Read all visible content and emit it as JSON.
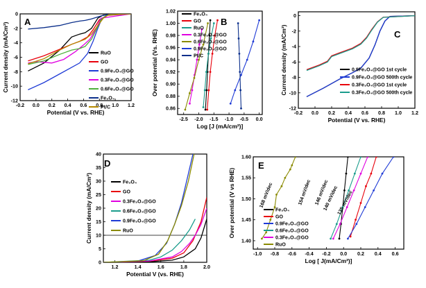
{
  "chart_data": [
    {
      "panel": "A",
      "type": "line",
      "xlabel": "Potential (V vs. RHE)",
      "ylabel": "Current density (mA/Cm²)",
      "xlim": [
        -0.2,
        1.2
      ],
      "ylim": [
        -12,
        0
      ],
      "xticks": [
        -0.2,
        0.0,
        0.2,
        0.4,
        0.6,
        0.8,
        1.0,
        1.2
      ],
      "yticks": [
        0,
        -2,
        -4,
        -6,
        -8,
        -10,
        -12
      ],
      "legend_position": "center-right",
      "series": [
        {
          "name": "RuO",
          "color": "#000000",
          "x": [
            -0.1,
            0.1,
            0.3,
            0.45,
            0.55,
            0.62,
            0.7,
            0.78,
            0.85,
            1.2
          ],
          "y": [
            -7.9,
            -6.8,
            -5.0,
            -3.2,
            -2.8,
            -2.6,
            -2.0,
            -0.6,
            -0.15,
            0.0
          ]
        },
        {
          "name": "GO",
          "color": "#e8000b",
          "x": [
            -0.1,
            0.1,
            0.3,
            0.45,
            0.55,
            0.65,
            0.72,
            0.8,
            0.9,
            1.2
          ],
          "y": [
            -6.5,
            -5.8,
            -4.9,
            -4.2,
            -3.8,
            -3.2,
            -2.2,
            -0.8,
            -0.2,
            0.0
          ]
        },
        {
          "name": "0.9Fe₃O₄@GO",
          "color": "#1f3bd6",
          "x": [
            -0.1,
            0.1,
            0.3,
            0.45,
            0.55,
            0.65,
            0.72,
            0.78,
            0.83,
            0.9,
            1.2
          ],
          "y": [
            -10.5,
            -9.5,
            -8.3,
            -7.4,
            -6.8,
            -5.5,
            -3.8,
            -2.0,
            -0.7,
            -0.1,
            0.0
          ]
        },
        {
          "name": "0.3Fe₃O₄@GO",
          "color": "#e000e0",
          "x": [
            -0.1,
            0.0,
            0.1,
            0.2,
            0.35,
            0.5,
            0.6,
            0.68,
            0.75,
            0.82,
            1.2
          ],
          "y": [
            -6.8,
            -6.6,
            -6.7,
            -6.8,
            -6.3,
            -5.2,
            -4.3,
            -3.5,
            -2.2,
            -0.6,
            0.0
          ]
        },
        {
          "name": "0.6Fe₃O₄@GO",
          "color": "#4caf3a",
          "x": [
            -0.1,
            0.1,
            0.3,
            0.45,
            0.55,
            0.62,
            0.7,
            0.76,
            0.82,
            0.9,
            1.2
          ],
          "y": [
            -7.0,
            -6.5,
            -5.6,
            -5.0,
            -4.8,
            -4.5,
            -3.5,
            -2.2,
            -0.8,
            -0.15,
            0.0
          ]
        },
        {
          "name": "Fe₃O₄",
          "color": "#0a2e8a",
          "x": [
            -0.1,
            0.1,
            0.3,
            0.45,
            0.55,
            0.62,
            0.7,
            0.77,
            0.83,
            0.9,
            1.2
          ],
          "y": [
            -2.1,
            -1.9,
            -1.6,
            -1.2,
            -1.0,
            -0.9,
            -0.7,
            -0.45,
            -0.25,
            -0.1,
            0.0
          ]
        },
        {
          "name": "Pt/C",
          "color": "#b58900",
          "x": [
            -0.1,
            0.1,
            0.3,
            0.45,
            0.55,
            0.62,
            0.7,
            0.78,
            0.85,
            0.92,
            1.2
          ],
          "y": [
            -6.9,
            -6.2,
            -5.0,
            -4.2,
            -3.8,
            -3.5,
            -2.8,
            -1.6,
            -0.6,
            -0.1,
            0.0
          ]
        }
      ]
    },
    {
      "panel": "B",
      "type": "line",
      "xlabel": "Log [J (mA/cm²)]",
      "ylabel": "Over potential (Vs. RHE)",
      "xlim": [
        -2.7,
        0.1
      ],
      "ylim": [
        0.85,
        1.02
      ],
      "xticks": [
        -2.5,
        -2.0,
        -1.5,
        -1.0,
        -0.5,
        0.0
      ],
      "yticks": [
        0.86,
        0.88,
        0.9,
        0.92,
        0.94,
        0.96,
        0.98,
        1.0,
        1.02
      ],
      "legend_position": "top-left",
      "series": [
        {
          "name": "Fe₃O₄",
          "color": "#000000",
          "x": [
            -1.78,
            -1.74,
            -1.71,
            -1.68,
            -1.65,
            -1.62
          ],
          "y": [
            0.858,
            0.89,
            0.92,
            0.95,
            0.98,
            1.005
          ]
        },
        {
          "name": "GO",
          "color": "#e8000b",
          "x": [
            -1.72,
            -1.67,
            -1.62,
            -1.55,
            -1.47,
            -1.38
          ],
          "y": [
            0.858,
            0.89,
            0.92,
            0.95,
            0.98,
            1.005
          ]
        },
        {
          "name": "RuO",
          "color": "#1a9c8c",
          "x": [
            -1.85,
            -1.8,
            -1.75,
            -1.68,
            -1.6,
            -1.5
          ],
          "y": [
            0.862,
            0.89,
            0.92,
            0.95,
            0.975,
            1.0
          ]
        },
        {
          "name": "0.3Fe₃O₄@GO",
          "color": "#e000e0",
          "x": [
            -2.3,
            -2.22,
            -2.14,
            -2.06,
            -1.98,
            -1.9
          ],
          "y": [
            0.868,
            0.89,
            0.915,
            0.94,
            0.965,
            0.99
          ]
        },
        {
          "name": "0.6Fe₃O₄@GO",
          "color": "#8a8a00",
          "x": [
            -2.45,
            -2.3,
            -2.15,
            -2.0,
            -1.85,
            -1.7
          ],
          "y": [
            0.858,
            0.885,
            0.91,
            0.94,
            0.965,
            1.0
          ]
        },
        {
          "name": "0.9Fe₃O₄@GO",
          "color": "#1f3bd6",
          "x": [
            -0.95,
            -0.8,
            -0.6,
            -0.4,
            -0.2,
            0.0
          ],
          "y": [
            0.868,
            0.89,
            0.915,
            0.94,
            0.97,
            1.005
          ]
        },
        {
          "name": "Pt/C",
          "color": "#0a2e8a",
          "x": [
            -0.6,
            -0.62,
            -0.64,
            -0.66,
            -0.68,
            -0.7
          ],
          "y": [
            0.86,
            0.89,
            0.92,
            0.95,
            0.975,
            1.0
          ]
        }
      ]
    },
    {
      "panel": "C",
      "type": "line",
      "xlabel": "Potential (V vs. RHE)",
      "ylabel": "Current density (mA/Cm²)",
      "xlim": [
        -0.2,
        1.2
      ],
      "ylim": [
        -12,
        0.5
      ],
      "xticks": [
        -0.2,
        0.0,
        0.2,
        0.4,
        0.6,
        0.8,
        1.0,
        1.2
      ],
      "yticks": [
        0,
        -2,
        -4,
        -6,
        -8,
        -10,
        -12
      ],
      "legend_position": "bottom-right",
      "series": [
        {
          "name": "0.9Fe₃O₄@GO 1st cycle",
          "color": "#000000",
          "x": [
            -0.1,
            0.1,
            0.3,
            0.45,
            0.55,
            0.65,
            0.72,
            0.78,
            0.84,
            0.9,
            1.2
          ],
          "y": [
            -10.5,
            -9.4,
            -8.2,
            -7.4,
            -6.8,
            -5.5,
            -3.8,
            -2.0,
            -0.7,
            -0.1,
            0.0
          ]
        },
        {
          "name": "0.9Fe₃O₄@GO 500th cycle",
          "color": "#1f3bd6",
          "x": [
            -0.1,
            0.1,
            0.3,
            0.45,
            0.55,
            0.65,
            0.72,
            0.78,
            0.84,
            0.9,
            1.2
          ],
          "y": [
            -10.5,
            -9.4,
            -8.2,
            -7.4,
            -6.8,
            -5.5,
            -3.8,
            -2.0,
            -0.7,
            -0.1,
            0.0
          ]
        },
        {
          "name": "0.3Fe₃O₄@GO 1st cycle",
          "color": "#e8000b",
          "x": [
            -0.1,
            0.05,
            0.15,
            0.2,
            0.3,
            0.45,
            0.55,
            0.62,
            0.68,
            0.75,
            0.82,
            1.2
          ],
          "y": [
            -7.0,
            -6.4,
            -5.9,
            -5.2,
            -4.8,
            -4.2,
            -3.6,
            -2.8,
            -1.8,
            -0.8,
            -0.2,
            0.0
          ]
        },
        {
          "name": "0.3Fe₃O₄@GO 500th cycle",
          "color": "#1a9c8c",
          "x": [
            -0.1,
            0.05,
            0.15,
            0.2,
            0.3,
            0.45,
            0.55,
            0.62,
            0.68,
            0.75,
            0.82,
            1.2
          ],
          "y": [
            -7.1,
            -6.5,
            -6.0,
            -5.3,
            -4.9,
            -4.3,
            -3.7,
            -2.9,
            -1.9,
            -0.85,
            -0.22,
            0.0
          ]
        }
      ]
    },
    {
      "panel": "D",
      "type": "line",
      "xlabel": "Potential V (vs. RHE)",
      "ylabel": "Current density (mA/Cm²)",
      "xlim": [
        1.1,
        2.0
      ],
      "ylim": [
        0,
        40
      ],
      "xticks": [
        1.2,
        1.4,
        1.6,
        1.8,
        2.0
      ],
      "yticks": [
        0,
        5,
        10,
        15,
        20,
        25,
        30,
        35,
        40
      ],
      "reference_line": 10,
      "legend_position": "top-left",
      "series": [
        {
          "name": "Fe₃O₄",
          "color": "#000000",
          "x": [
            1.1,
            1.5,
            1.7,
            1.8,
            1.9,
            1.95,
            2.0
          ],
          "y": [
            0,
            0.2,
            0.8,
            2.0,
            5.0,
            9.0,
            16.0
          ]
        },
        {
          "name": "GO",
          "color": "#e8000b",
          "x": [
            1.1,
            1.5,
            1.7,
            1.8,
            1.88,
            1.95,
            2.0
          ],
          "y": [
            0,
            0.4,
            1.5,
            3.5,
            8.0,
            15.0,
            24.0
          ]
        },
        {
          "name": "0.3Fe₃O₄@GO",
          "color": "#e000e0",
          "x": [
            1.1,
            1.5,
            1.7,
            1.78,
            1.85,
            1.9,
            1.95,
            2.0
          ],
          "y": [
            0,
            0.5,
            2.0,
            4.0,
            7.0,
            10.0,
            14.0,
            20.0
          ]
        },
        {
          "name": "0.6Fe₃O₄@GO",
          "color": "#1a9c8c",
          "x": [
            1.1,
            1.5,
            1.6,
            1.7,
            1.78,
            1.85,
            1.9
          ],
          "y": [
            0,
            0.8,
            2.0,
            4.5,
            8.0,
            12.0,
            16.0
          ]
        },
        {
          "name": "0.9Fe₃O₄@GO",
          "color": "#1f3bd6",
          "x": [
            1.1,
            1.4,
            1.55,
            1.65,
            1.72,
            1.78,
            1.83,
            1.88
          ],
          "y": [
            0,
            0.5,
            2.5,
            7.0,
            14.0,
            22.0,
            31.0,
            40.0
          ]
        },
        {
          "name": "RuO",
          "color": "#8a8a00",
          "x": [
            1.1,
            1.45,
            1.58,
            1.66,
            1.72,
            1.78,
            1.84,
            1.89
          ],
          "y": [
            0,
            0.6,
            3.0,
            8.0,
            14.0,
            21.0,
            30.0,
            40.0
          ]
        }
      ]
    },
    {
      "panel": "E",
      "type": "line",
      "xlabel": "Log [ J(mA/Cm²)]",
      "ylabel": "Over potential (V vs RHE)",
      "xlim": [
        -1.05,
        0.7
      ],
      "ylim": [
        1.38,
        1.6
      ],
      "xticks": [
        -1.0,
        -0.8,
        -0.6,
        -0.4,
        -0.2,
        0.0,
        0.2,
        0.4,
        0.6
      ],
      "yticks": [
        1.4,
        1.45,
        1.5,
        1.55,
        1.6
      ],
      "legend_position": "bottom-left",
      "annotations": [
        "168 mV/dec",
        "154 mV/dec",
        "146 mV/dec",
        "140 mV/dec",
        "135 mV/dec"
      ],
      "series": [
        {
          "name": "Fe₃O₄",
          "color": "#000000",
          "x": [
            -0.05,
            -0.03,
            -0.01,
            0.01,
            0.03,
            0.05
          ],
          "y": [
            1.405,
            1.44,
            1.48,
            1.52,
            1.56,
            1.6
          ]
        },
        {
          "name": "GO",
          "color": "#e8000b",
          "x": [
            0.08,
            0.14,
            0.2,
            0.26,
            0.32,
            0.38
          ],
          "y": [
            1.41,
            1.45,
            1.49,
            1.53,
            1.56,
            1.6
          ]
        },
        {
          "name": "0.9Fe₃O₄@GO",
          "color": "#1f3bd6",
          "x": [
            0.05,
            0.15,
            0.25,
            0.35,
            0.45,
            0.58
          ],
          "y": [
            1.405,
            1.44,
            1.48,
            1.52,
            1.56,
            1.6
          ]
        },
        {
          "name": "0.6Fe₃O₄@GO",
          "color": "#1a9c8c",
          "x": [
            -0.15,
            -0.08,
            -0.01,
            0.06,
            0.13,
            0.2
          ],
          "y": [
            1.405,
            1.44,
            1.48,
            1.52,
            1.56,
            1.6
          ]
        },
        {
          "name": "0.3Fe₃O₄@GO",
          "color": "#e000e0",
          "x": [
            -0.12,
            -0.04,
            0.04,
            0.12,
            0.2,
            0.28
          ],
          "y": [
            1.405,
            1.44,
            1.48,
            1.52,
            1.56,
            1.6
          ]
        },
        {
          "name": "RuO",
          "color": "#8a8a00",
          "x": [
            -0.95,
            -0.9,
            -0.85,
            -0.8,
            -0.78,
            -0.72,
            -0.68,
            -0.62,
            -0.6,
            -0.56
          ],
          "y": [
            1.405,
            1.42,
            1.45,
            1.48,
            1.51,
            1.53,
            1.55,
            1.57,
            1.58,
            1.6
          ]
        }
      ]
    }
  ]
}
